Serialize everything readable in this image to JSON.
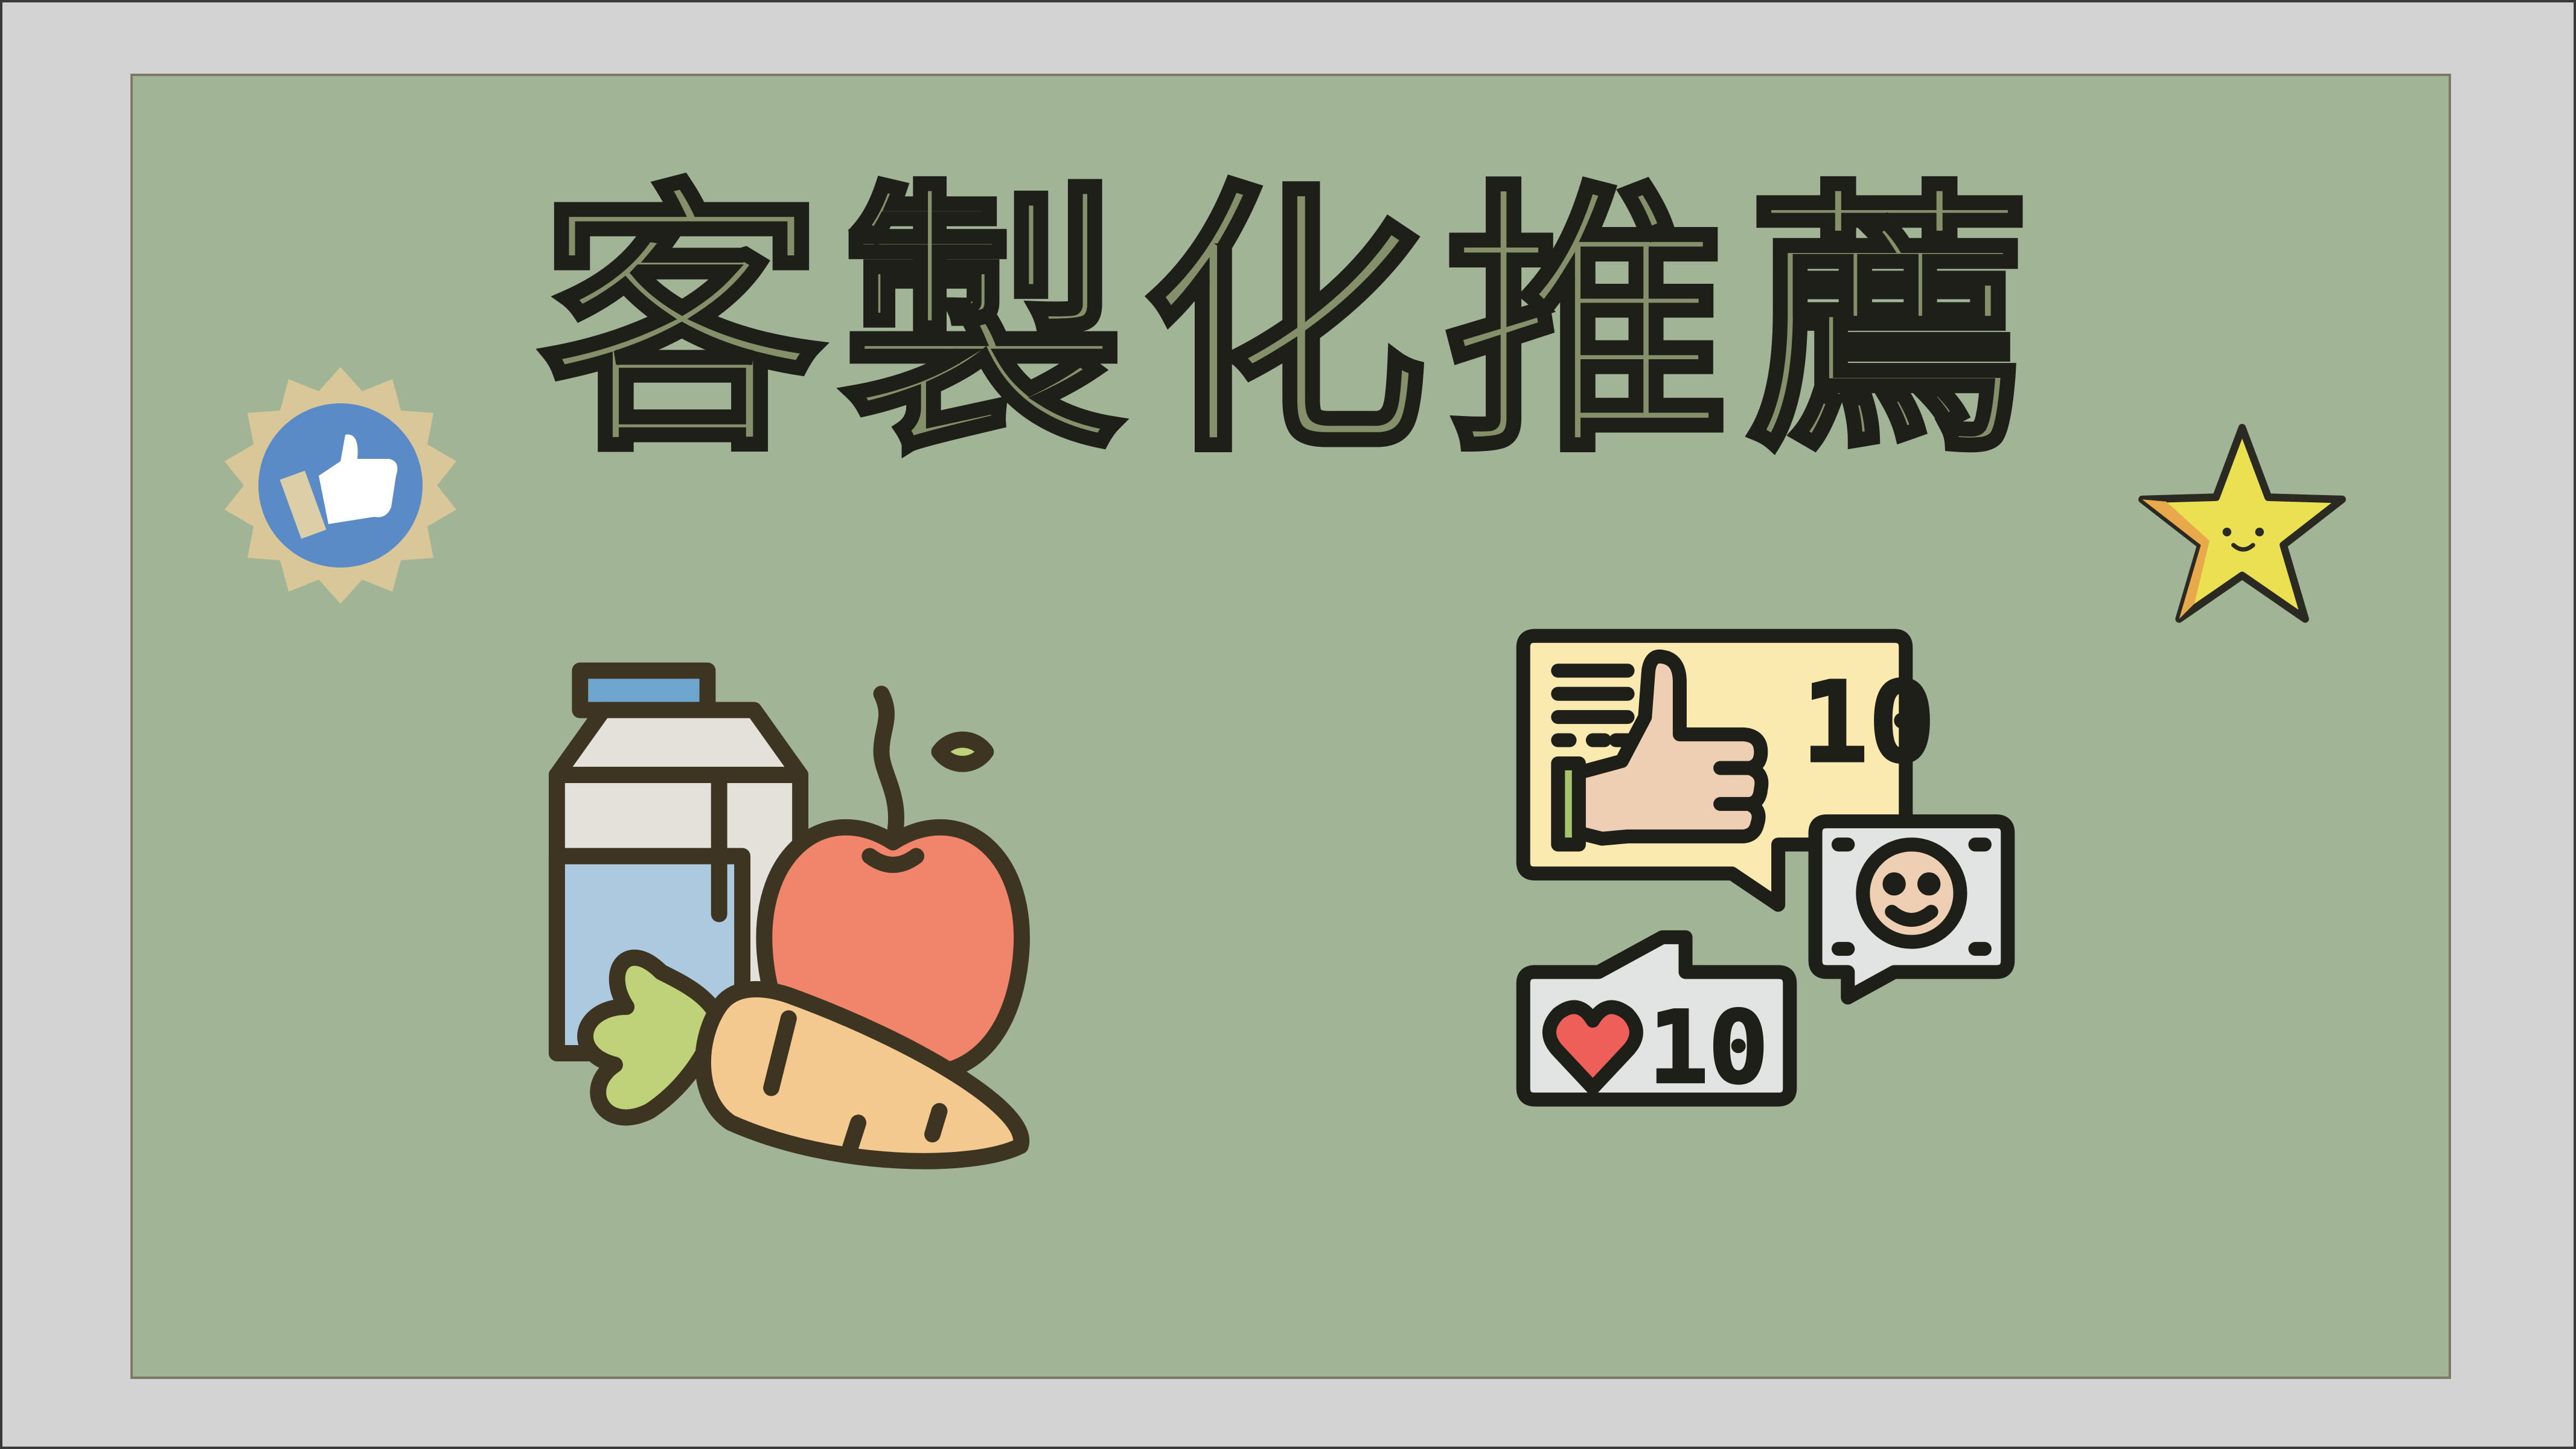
{
  "slide": {
    "title": "客製化推薦"
  },
  "icons": {
    "badge": "thumbs-up-badge-icon",
    "star": "smiling-star-icon",
    "groceries": "groceries-milk-apple-carrot-icon",
    "social": "social-feedback-thumbs-up-icon"
  },
  "numbers": {
    "likes_count": "10",
    "hearts_count": "10"
  },
  "colors": {
    "background": "#d3d3d3",
    "board": "#a1b596",
    "title_fill": "#858f69",
    "outline": "#3d3422",
    "badge_blue": "#5b8bc6",
    "badge_ring": "#d9c79a",
    "star_yellow": "#ebe052",
    "milk_blue": "#6fa6d0",
    "apple_red": "#f0856b",
    "carrot_orange": "#f4c98f",
    "leaf_green": "#bfd27a",
    "card_yellow": "#fbeab0",
    "hand_skin": "#efcfb4",
    "heart_red": "#ef5f5a"
  }
}
